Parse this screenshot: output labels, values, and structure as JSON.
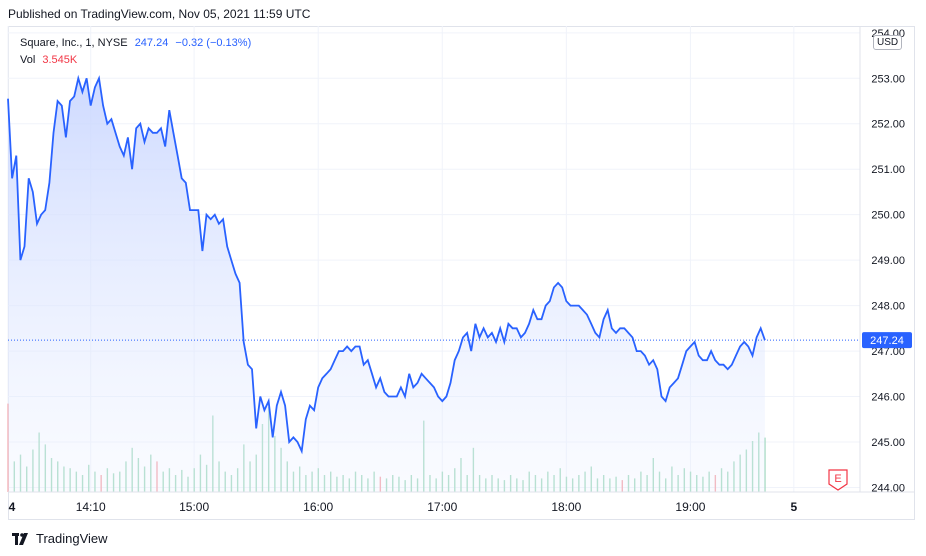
{
  "header": {
    "published": "Published on TradingView.com, Nov 05, 2021 11:59 UTC"
  },
  "legend": {
    "symbol": "Square, Inc., 1, NYSE",
    "price": "247.24",
    "change": "−0.32 (−0.13%)",
    "vol_label": "Vol",
    "vol_value": "3.545K"
  },
  "currency": "USD",
  "footer": {
    "brand": "TradingView",
    "logo_icon": "tradingview-logo-icon"
  },
  "earnings_badge": "E",
  "colors": {
    "line": "#2962ff",
    "fill_top": "#c9d6ff",
    "up_volume": "#a6dbc2",
    "down_volume": "#f4a8ae",
    "price_tag": "#2962ff"
  },
  "chart_data": {
    "type": "area",
    "y_axis_labels": [
      "254.00",
      "253.00",
      "252.00",
      "251.00",
      "250.00",
      "249.00",
      "248.00",
      "247.00",
      "246.00",
      "245.00",
      "244.00"
    ],
    "x_axis_labels": [
      {
        "label": "4",
        "t": 0
      },
      {
        "label": "14:10",
        "t": 40
      },
      {
        "label": "15:00",
        "t": 90
      },
      {
        "label": "16:00",
        "t": 150
      },
      {
        "label": "17:00",
        "t": 210
      },
      {
        "label": "18:00",
        "t": 270
      },
      {
        "label": "19:00",
        "t": 330
      },
      {
        "label": "5",
        "t": 380
      }
    ],
    "ylim": [
      243.9,
      254.15
    ],
    "xlim": [
      0,
      412
    ],
    "last_price": 247.24,
    "last_price_label": "247.24",
    "price_points": [
      [
        0,
        252.55
      ],
      [
        2,
        250.8
      ],
      [
        4,
        251.3
      ],
      [
        6,
        249.0
      ],
      [
        8,
        249.3
      ],
      [
        10,
        250.8
      ],
      [
        12,
        250.5
      ],
      [
        14,
        249.8
      ],
      [
        16,
        250.0
      ],
      [
        18,
        250.1
      ],
      [
        20,
        250.7
      ],
      [
        22,
        251.8
      ],
      [
        24,
        252.5
      ],
      [
        26,
        252.4
      ],
      [
        28,
        251.7
      ],
      [
        30,
        252.5
      ],
      [
        32,
        252.6
      ],
      [
        34,
        253.0
      ],
      [
        36,
        252.7
      ],
      [
        38,
        253.0
      ],
      [
        40,
        252.4
      ],
      [
        42,
        252.8
      ],
      [
        44,
        253.0
      ],
      [
        46,
        252.4
      ],
      [
        48,
        252.0
      ],
      [
        50,
        252.1
      ],
      [
        52,
        251.8
      ],
      [
        54,
        251.5
      ],
      [
        56,
        251.3
      ],
      [
        58,
        251.7
      ],
      [
        60,
        251.0
      ],
      [
        62,
        251.9
      ],
      [
        64,
        252.0
      ],
      [
        66,
        251.6
      ],
      [
        68,
        251.9
      ],
      [
        70,
        251.8
      ],
      [
        72,
        251.8
      ],
      [
        74,
        251.9
      ],
      [
        76,
        251.5
      ],
      [
        78,
        252.3
      ],
      [
        80,
        251.8
      ],
      [
        82,
        251.3
      ],
      [
        84,
        250.8
      ],
      [
        86,
        250.7
      ],
      [
        88,
        250.1
      ],
      [
        90,
        250.1
      ],
      [
        92,
        250.1
      ],
      [
        94,
        249.2
      ],
      [
        96,
        250.0
      ],
      [
        98,
        249.9
      ],
      [
        100,
        250.0
      ],
      [
        102,
        249.8
      ],
      [
        104,
        249.9
      ],
      [
        106,
        249.3
      ],
      [
        108,
        249.0
      ],
      [
        110,
        248.7
      ],
      [
        112,
        248.5
      ],
      [
        114,
        247.2
      ],
      [
        116,
        246.7
      ],
      [
        118,
        246.6
      ],
      [
        120,
        245.3
      ],
      [
        122,
        246.0
      ],
      [
        124,
        245.7
      ],
      [
        126,
        245.9
      ],
      [
        128,
        245.1
      ],
      [
        130,
        245.8
      ],
      [
        132,
        246.1
      ],
      [
        134,
        245.8
      ],
      [
        136,
        245.0
      ],
      [
        138,
        245.1
      ],
      [
        140,
        245.0
      ],
      [
        142,
        244.8
      ],
      [
        144,
        245.5
      ],
      [
        146,
        245.8
      ],
      [
        148,
        245.7
      ],
      [
        150,
        246.2
      ],
      [
        152,
        246.4
      ],
      [
        154,
        246.5
      ],
      [
        156,
        246.6
      ],
      [
        158,
        246.8
      ],
      [
        160,
        247.0
      ],
      [
        162,
        247.0
      ],
      [
        164,
        247.1
      ],
      [
        166,
        247.0
      ],
      [
        168,
        247.1
      ],
      [
        170,
        247.1
      ],
      [
        172,
        246.7
      ],
      [
        174,
        246.8
      ],
      [
        176,
        246.5
      ],
      [
        178,
        246.2
      ],
      [
        180,
        246.4
      ],
      [
        182,
        246.1
      ],
      [
        184,
        246.0
      ],
      [
        186,
        246.0
      ],
      [
        188,
        246.0
      ],
      [
        190,
        246.2
      ],
      [
        192,
        246.0
      ],
      [
        194,
        246.5
      ],
      [
        196,
        246.2
      ],
      [
        198,
        246.3
      ],
      [
        200,
        246.5
      ],
      [
        202,
        246.4
      ],
      [
        204,
        246.3
      ],
      [
        206,
        246.2
      ],
      [
        208,
        246.0
      ],
      [
        210,
        245.9
      ],
      [
        212,
        246.0
      ],
      [
        214,
        246.3
      ],
      [
        216,
        246.8
      ],
      [
        218,
        247.0
      ],
      [
        220,
        247.3
      ],
      [
        222,
        247.4
      ],
      [
        224,
        247.0
      ],
      [
        226,
        247.6
      ],
      [
        228,
        247.3
      ],
      [
        230,
        247.5
      ],
      [
        232,
        247.3
      ],
      [
        234,
        247.4
      ],
      [
        236,
        247.2
      ],
      [
        238,
        247.5
      ],
      [
        240,
        247.2
      ],
      [
        242,
        247.6
      ],
      [
        244,
        247.5
      ],
      [
        246,
        247.5
      ],
      [
        248,
        247.3
      ],
      [
        250,
        247.4
      ],
      [
        252,
        247.6
      ],
      [
        254,
        247.9
      ],
      [
        256,
        247.7
      ],
      [
        258,
        247.7
      ],
      [
        260,
        248.0
      ],
      [
        262,
        248.1
      ],
      [
        264,
        248.4
      ],
      [
        266,
        248.5
      ],
      [
        268,
        248.4
      ],
      [
        270,
        248.1
      ],
      [
        272,
        248.0
      ],
      [
        274,
        248.0
      ],
      [
        276,
        248.0
      ],
      [
        278,
        247.9
      ],
      [
        280,
        247.8
      ],
      [
        282,
        247.6
      ],
      [
        284,
        247.4
      ],
      [
        286,
        247.3
      ],
      [
        288,
        247.7
      ],
      [
        290,
        247.9
      ],
      [
        292,
        247.5
      ],
      [
        294,
        247.4
      ],
      [
        296,
        247.5
      ],
      [
        298,
        247.5
      ],
      [
        300,
        247.4
      ],
      [
        302,
        247.3
      ],
      [
        304,
        247.0
      ],
      [
        306,
        247.0
      ],
      [
        308,
        246.9
      ],
      [
        310,
        246.7
      ],
      [
        312,
        246.8
      ],
      [
        314,
        246.6
      ],
      [
        316,
        246.0
      ],
      [
        318,
        245.9
      ],
      [
        320,
        246.2
      ],
      [
        322,
        246.3
      ],
      [
        324,
        246.4
      ],
      [
        326,
        246.7
      ],
      [
        328,
        247.0
      ],
      [
        330,
        247.1
      ],
      [
        332,
        247.2
      ],
      [
        334,
        246.9
      ],
      [
        336,
        246.8
      ],
      [
        338,
        246.8
      ],
      [
        340,
        247.0
      ],
      [
        342,
        246.8
      ],
      [
        344,
        246.7
      ],
      [
        346,
        246.7
      ],
      [
        348,
        246.6
      ],
      [
        350,
        246.7
      ],
      [
        352,
        246.9
      ],
      [
        354,
        247.1
      ],
      [
        356,
        247.2
      ],
      [
        358,
        247.1
      ],
      [
        360,
        246.9
      ],
      [
        362,
        247.3
      ],
      [
        364,
        247.5
      ],
      [
        366,
        247.24
      ]
    ],
    "volume_points": [
      [
        0,
        0.52
      ],
      [
        3,
        0.18
      ],
      [
        6,
        0.22
      ],
      [
        9,
        0.15
      ],
      [
        12,
        0.25
      ],
      [
        15,
        0.35
      ],
      [
        18,
        0.28
      ],
      [
        21,
        0.2
      ],
      [
        24,
        0.18
      ],
      [
        27,
        0.15
      ],
      [
        30,
        0.14
      ],
      [
        33,
        0.12
      ],
      [
        36,
        0.1
      ],
      [
        39,
        0.16
      ],
      [
        42,
        0.12
      ],
      [
        45,
        0.1
      ],
      [
        48,
        0.14
      ],
      [
        51,
        0.11
      ],
      [
        54,
        0.12
      ],
      [
        57,
        0.18
      ],
      [
        60,
        0.26
      ],
      [
        63,
        0.2
      ],
      [
        66,
        0.15
      ],
      [
        69,
        0.22
      ],
      [
        72,
        0.18
      ],
      [
        75,
        0.12
      ],
      [
        78,
        0.14
      ],
      [
        81,
        0.1
      ],
      [
        84,
        0.13
      ],
      [
        87,
        0.09
      ],
      [
        90,
        0.14
      ],
      [
        93,
        0.22
      ],
      [
        96,
        0.16
      ],
      [
        99,
        0.45
      ],
      [
        102,
        0.18
      ],
      [
        105,
        0.12
      ],
      [
        108,
        0.1
      ],
      [
        111,
        0.14
      ],
      [
        114,
        0.28
      ],
      [
        117,
        0.18
      ],
      [
        120,
        0.22
      ],
      [
        123,
        0.4
      ],
      [
        126,
        0.5
      ],
      [
        129,
        0.33
      ],
      [
        132,
        0.26
      ],
      [
        135,
        0.18
      ],
      [
        138,
        0.12
      ],
      [
        141,
        0.15
      ],
      [
        144,
        0.1
      ],
      [
        147,
        0.12
      ],
      [
        150,
        0.14
      ],
      [
        153,
        0.1
      ],
      [
        156,
        0.12
      ],
      [
        159,
        0.09
      ],
      [
        162,
        0.1
      ],
      [
        165,
        0.08
      ],
      [
        168,
        0.12
      ],
      [
        171,
        0.1
      ],
      [
        174,
        0.08
      ],
      [
        177,
        0.12
      ],
      [
        180,
        0.09
      ],
      [
        183,
        0.08
      ],
      [
        186,
        0.1
      ],
      [
        189,
        0.09
      ],
      [
        192,
        0.07
      ],
      [
        195,
        0.1
      ],
      [
        198,
        0.08
      ],
      [
        201,
        0.42
      ],
      [
        204,
        0.1
      ],
      [
        207,
        0.08
      ],
      [
        210,
        0.12
      ],
      [
        213,
        0.1
      ],
      [
        216,
        0.14
      ],
      [
        219,
        0.2
      ],
      [
        222,
        0.1
      ],
      [
        225,
        0.26
      ],
      [
        228,
        0.1
      ],
      [
        231,
        0.08
      ],
      [
        234,
        0.1
      ],
      [
        237,
        0.08
      ],
      [
        240,
        0.07
      ],
      [
        243,
        0.1
      ],
      [
        246,
        0.08
      ],
      [
        249,
        0.07
      ],
      [
        252,
        0.12
      ],
      [
        255,
        0.1
      ],
      [
        258,
        0.08
      ],
      [
        261,
        0.12
      ],
      [
        264,
        0.1
      ],
      [
        267,
        0.14
      ],
      [
        270,
        0.09
      ],
      [
        273,
        0.08
      ],
      [
        276,
        0.1
      ],
      [
        279,
        0.12
      ],
      [
        282,
        0.15
      ],
      [
        285,
        0.08
      ],
      [
        288,
        0.1
      ],
      [
        291,
        0.08
      ],
      [
        294,
        0.09
      ],
      [
        297,
        0.07
      ],
      [
        300,
        0.1
      ],
      [
        303,
        0.08
      ],
      [
        306,
        0.12
      ],
      [
        309,
        0.1
      ],
      [
        312,
        0.2
      ],
      [
        315,
        0.12
      ],
      [
        318,
        0.08
      ],
      [
        321,
        0.15
      ],
      [
        324,
        0.1
      ],
      [
        327,
        0.14
      ],
      [
        330,
        0.12
      ],
      [
        333,
        0.1
      ],
      [
        336,
        0.09
      ],
      [
        339,
        0.12
      ],
      [
        342,
        0.1
      ],
      [
        345,
        0.14
      ],
      [
        348,
        0.12
      ],
      [
        351,
        0.18
      ],
      [
        354,
        0.22
      ],
      [
        357,
        0.25
      ],
      [
        360,
        0.3
      ],
      [
        363,
        0.35
      ],
      [
        366,
        0.32
      ]
    ],
    "volume_down_indices": [
      0,
      15,
      24,
      60,
      99,
      114,
      123,
      126,
      201,
      225
    ]
  }
}
